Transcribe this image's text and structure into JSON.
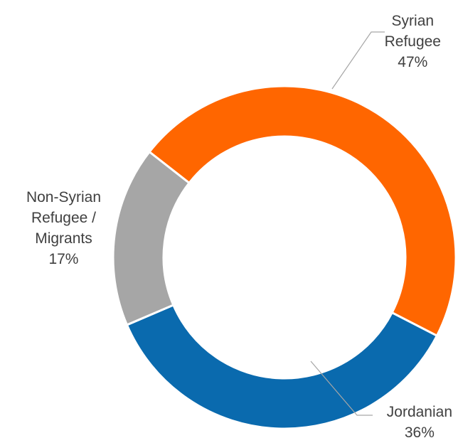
{
  "chart_data": {
    "type": "pie",
    "style": "donut",
    "slices": [
      {
        "label_lines": [
          "Syrian",
          "Refugee"
        ],
        "value": 47,
        "value_label": "47%",
        "color": "#FF6600"
      },
      {
        "label_lines": [
          "Jordanian"
        ],
        "value": 36,
        "value_label": "36%",
        "color": "#0A6AAE"
      },
      {
        "label_lines": [
          "Non-Syrian",
          "Refugee /",
          "Migrants"
        ],
        "value": 17,
        "value_label": "17%",
        "color": "#A6A6A6"
      }
    ],
    "units": "%"
  }
}
